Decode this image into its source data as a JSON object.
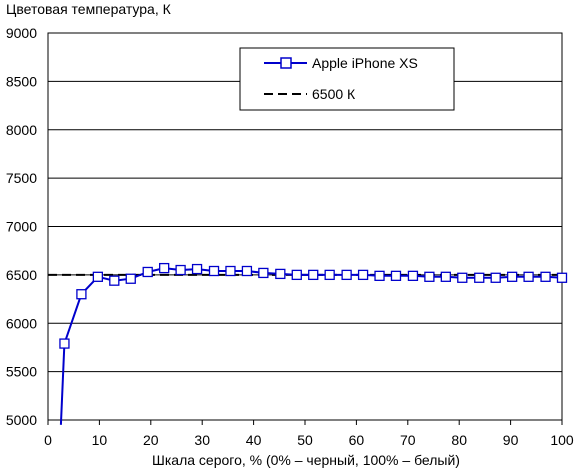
{
  "chart_data": {
    "type": "line",
    "title": "",
    "ylabel": "Цветовая температура, К",
    "xlabel": "Шкала серого, % (0% – черный, 100% – белый)",
    "xlim": [
      0,
      100
    ],
    "ylim": [
      5000,
      9000
    ],
    "x_ticks": [
      0,
      10,
      20,
      30,
      40,
      50,
      60,
      70,
      80,
      90,
      100
    ],
    "y_ticks": [
      5000,
      5500,
      6000,
      6500,
      7000,
      7500,
      8000,
      8500,
      9000
    ],
    "grid": "horizontal",
    "legend_position": "top-center",
    "series": [
      {
        "name": "Apple iPhone XS",
        "color": "#0000cc",
        "marker": "square",
        "x": [
          2.5,
          3.2,
          6.5,
          9.7,
          12.9,
          16.1,
          19.4,
          22.6,
          25.8,
          29.0,
          32.3,
          35.5,
          38.7,
          41.9,
          45.2,
          48.4,
          51.6,
          54.8,
          58.1,
          61.3,
          64.5,
          67.7,
          71.0,
          74.2,
          77.4,
          80.6,
          83.9,
          87.1,
          90.3,
          93.5,
          96.8,
          100.0
        ],
        "y": [
          4950,
          5790,
          6300,
          6480,
          6440,
          6460,
          6530,
          6570,
          6550,
          6560,
          6540,
          6540,
          6540,
          6520,
          6510,
          6500,
          6500,
          6500,
          6500,
          6500,
          6490,
          6490,
          6490,
          6480,
          6480,
          6470,
          6470,
          6470,
          6480,
          6480,
          6480,
          6470
        ]
      },
      {
        "name": "6500 К",
        "color": "#000000",
        "style": "dashed",
        "x": [
          0,
          100
        ],
        "y": [
          6500,
          6500
        ]
      }
    ]
  }
}
